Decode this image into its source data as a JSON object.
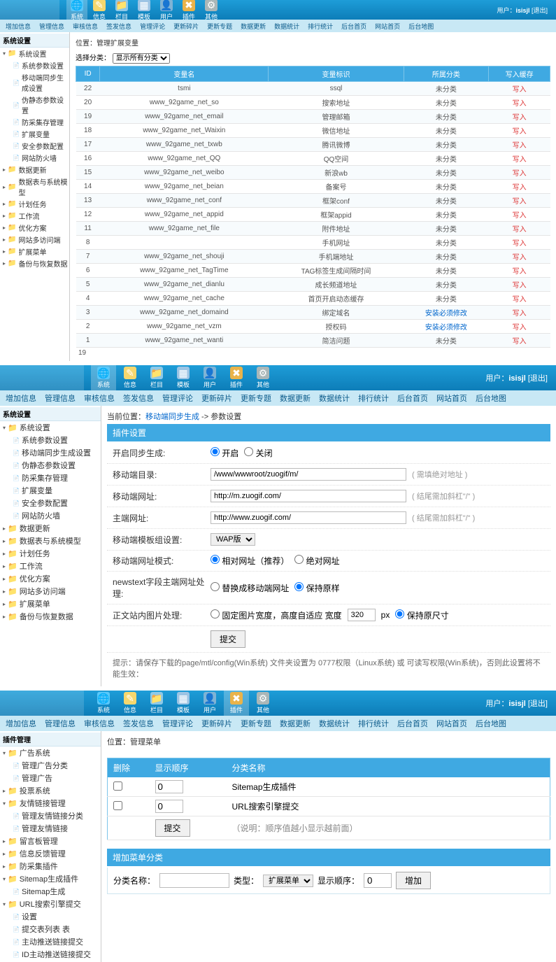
{
  "topbar": {
    "user_prefix": "用户：",
    "user": "isisjl",
    "logout": "[退出]",
    "icons": [
      {
        "id": "sys",
        "label": "系统",
        "color": "#5ac8fa",
        "glyph": "🌐"
      },
      {
        "id": "info",
        "label": "信息",
        "color": "#f5d76e",
        "glyph": "✎"
      },
      {
        "id": "col",
        "label": "栏目",
        "color": "#8ec9e8",
        "glyph": "📁"
      },
      {
        "id": "tpl",
        "label": "模板",
        "color": "#9cc4e4",
        "glyph": "▦"
      },
      {
        "id": "user",
        "label": "用户",
        "color": "#7fb3d5",
        "glyph": "👤"
      },
      {
        "id": "plugin",
        "label": "插件",
        "color": "#e9b34a",
        "glyph": "✖"
      },
      {
        "id": "other",
        "label": "其他",
        "color": "#aab7b8",
        "glyph": "⚙"
      }
    ]
  },
  "subnav": [
    "增加信息",
    "管理信息",
    "审核信息",
    "签发信息",
    "管理评论",
    "更新碎片",
    "更新专题",
    "数据更新",
    "数据统计",
    "排行统计",
    "后台首页",
    "网站首页",
    "后台地图"
  ],
  "panel1": {
    "sidebar_title": "系统设置",
    "sidebar": [
      {
        "type": "folder",
        "label": "系统设置",
        "open": true,
        "children": [
          {
            "label": "系统参数设置"
          },
          {
            "label": "移动端同步生成设置"
          },
          {
            "label": "伪静态参数设置"
          },
          {
            "label": "防采集存管理"
          },
          {
            "label": "扩展变量"
          },
          {
            "label": "安全参数配置"
          },
          {
            "label": "网站防火墙"
          }
        ]
      },
      {
        "type": "folder",
        "label": "数据更新"
      },
      {
        "type": "folder",
        "label": "数据表与系统模型"
      },
      {
        "type": "folder",
        "label": "计划任务"
      },
      {
        "type": "folder",
        "label": "工作流"
      },
      {
        "type": "folder",
        "label": "优化方案"
      },
      {
        "type": "folder",
        "label": "网站多访问端"
      },
      {
        "type": "folder",
        "label": "扩展菜单"
      },
      {
        "type": "folder",
        "label": "备份与恢复数据"
      }
    ],
    "crumb": "位置：管理扩展变量",
    "filter_label": "选择分类：",
    "filter_value": "显示所有分类",
    "columns": [
      "ID",
      "变量名",
      "变量标识",
      "所属分类",
      "写入缓存"
    ],
    "rows": [
      [
        "22",
        "tsmi",
        "ssql",
        "未分类",
        "写入"
      ],
      [
        "20",
        "www_92game_net_so",
        "搜索地址",
        "未分类",
        "写入"
      ],
      [
        "19",
        "www_92game_net_email",
        "管理邮箱",
        "未分类",
        "写入"
      ],
      [
        "18",
        "www_92game_net_Waixin",
        "微信地址",
        "未分类",
        "写入"
      ],
      [
        "17",
        "www_92game_net_txwb",
        "腾讯微博",
        "未分类",
        "写入"
      ],
      [
        "16",
        "www_92game_net_QQ",
        "QQ空间",
        "未分类",
        "写入"
      ],
      [
        "15",
        "www_92game_net_weibo",
        "新浪wb",
        "未分类",
        "写入"
      ],
      [
        "14",
        "www_92game_net_beian",
        "备案号",
        "未分类",
        "写入"
      ],
      [
        "13",
        "www_92game_net_conf",
        "框架conf",
        "未分类",
        "写入"
      ],
      [
        "12",
        "www_92game_net_appid",
        "框架appid",
        "未分类",
        "写入"
      ],
      [
        "11",
        "www_92game_net_file",
        "附件地址",
        "未分类",
        "写入"
      ],
      [
        "8",
        "",
        "手机网址",
        "未分类",
        "写入"
      ],
      [
        "7",
        "www_92game_net_shouji",
        "手机端地址",
        "未分类",
        "写入"
      ],
      [
        "6",
        "www_92game_net_TagTime",
        "TAG标签生成间隔时间",
        "未分类",
        "写入"
      ],
      [
        "5",
        "www_92game_net_dianlu",
        "成长频道地址",
        "未分类",
        "写入"
      ],
      [
        "4",
        "www_92game_net_cache",
        "首页开启动态缓存",
        "未分类",
        "写入"
      ],
      [
        "3",
        "www_92game_net_domaind",
        "绑定域名",
        "安装必须修改",
        "写入"
      ],
      [
        "2",
        "www_92game_net_vzm",
        "授权码",
        "安装必须修改",
        "写入"
      ],
      [
        "1",
        "www_92game_net_wanti",
        "简洁问题",
        "未分类",
        "写入"
      ]
    ],
    "footer_num": "19"
  },
  "panel2": {
    "crumb_prefix": "当前位置：",
    "crumb_link": "移动端同步生成",
    "crumb_suffix": " -> 参数设置",
    "section_title": "插件设置",
    "rows": [
      {
        "label": "开启同步生成:",
        "type": "radio",
        "options": [
          "开启",
          "关闭"
        ],
        "selected": 0
      },
      {
        "label": "移动端目录:",
        "type": "text",
        "value": "/www/wwwroot/zuogif/m/",
        "hint": "( 需填绝对地址 )"
      },
      {
        "label": "移动端网址:",
        "type": "text",
        "value": "http://m.zuogif.com/",
        "hint": "( 结尾需加斜杠\"/\" )"
      },
      {
        "label": "主端网址:",
        "type": "text",
        "value": "http://www.zuogif.com/",
        "hint": "( 结尾需加斜杠\"/\" )"
      },
      {
        "label": "移动端模板组设置:",
        "type": "select",
        "value": "WAP版"
      },
      {
        "label": "移动端网址模式:",
        "type": "radio",
        "options": [
          "相对网址（推荐）",
          "绝对网址"
        ],
        "selected": 0
      },
      {
        "label": "newstext字段主端网址处理:",
        "type": "radio",
        "options": [
          "替换成移动端网址",
          "保持原样"
        ],
        "selected": 1
      },
      {
        "label": "正文站内图片处理:",
        "type": "imgwidth",
        "opt1": "固定图片宽度，高度自适应 宽度",
        "val": "320",
        "unit": "px",
        "opt2": "保持原尺寸",
        "selected": 1
      }
    ],
    "submit": "提交",
    "tip": "提示：请保存下载的page/mtl/config(Win系统) 文件夹设置为 0777权限（Linux系统) 或 可读写权限(Win系统)，否则此设置将不能生效："
  },
  "panel3": {
    "sidebar_title": "插件管理",
    "sidebar": [
      {
        "type": "folder",
        "label": "广告系统",
        "open": true,
        "children": [
          {
            "label": "管理广告分类"
          },
          {
            "label": "管理广告"
          }
        ]
      },
      {
        "type": "folder",
        "label": "投票系统"
      },
      {
        "type": "folder",
        "label": "友情链接管理",
        "open": true,
        "children": [
          {
            "label": "管理友情链接分类"
          },
          {
            "label": "管理友情链接"
          }
        ]
      },
      {
        "type": "folder",
        "label": "留言板管理"
      },
      {
        "type": "folder",
        "label": "信息反馈管理"
      },
      {
        "type": "folder",
        "label": "防采集插件"
      },
      {
        "type": "folder",
        "label": "Sitemap生成插件",
        "open": true,
        "children": [
          {
            "label": "Sitemap生成"
          }
        ]
      },
      {
        "type": "folder",
        "label": "URL搜索引擎提交",
        "open": true,
        "children": [
          {
            "label": "设置"
          },
          {
            "label": "提交表列表  表"
          },
          {
            "label": "主动推送链接提交"
          },
          {
            "label": "ID主动推送链接提交"
          }
        ]
      }
    ],
    "crumb": "位置：管理菜单",
    "table": {
      "columns": [
        "删除",
        "显示顺序",
        "分类名称"
      ],
      "rows": [
        {
          "order": "0",
          "name": "Sitemap生成插件"
        },
        {
          "order": "0",
          "name": "URL搜索引擎提交"
        }
      ],
      "submit": "提交",
      "note": "（说明：顺序值越小显示越前面）"
    },
    "add": {
      "title": "增加菜单分类",
      "name_label": "分类名称：",
      "type_label": "类型：",
      "type_value": "扩展菜单",
      "order_label": "显示顺序：",
      "order_value": "0",
      "btn": "增加"
    }
  }
}
